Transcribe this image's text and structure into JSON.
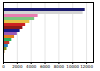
{
  "chart_data": {
    "type": "bar",
    "orientation": "horizontal",
    "categories": [
      null,
      null,
      null,
      null,
      null,
      null,
      null,
      null,
      null,
      null,
      null,
      null,
      null,
      null,
      null,
      null
    ],
    "values": [
      11800,
      11500,
      5000,
      4500,
      3800,
      3200,
      2800,
      2400,
      2000,
      1600,
      1200,
      900,
      700,
      500,
      200,
      80
    ],
    "colors": [
      "#1a1a6e",
      "#d4d4d4",
      "#e87db0",
      "#7bc67e",
      "#e6c34a",
      "#cc2222",
      "#8b1a1a",
      "#1a1a8b",
      "#9b59b6",
      "#e67e22",
      "#27ae60",
      "#c0392b",
      "#2980b9",
      "#7f8c1a",
      "#b07820",
      "#c0392b"
    ],
    "xlim": [
      0,
      13000
    ],
    "xticks": [
      0,
      2000,
      4000,
      6000,
      8000,
      10000,
      12000
    ],
    "grid": true,
    "tick_labels": "x"
  }
}
